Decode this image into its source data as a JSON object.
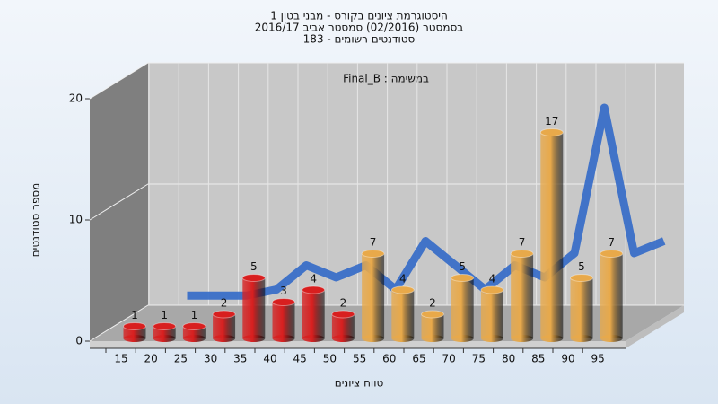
{
  "chart_data": {
    "type": "bar",
    "title": [
      "היסטוגרמת ציונים בקורס - מבני בטון 1",
      "בסמסטר (02/2016) סמסטר אביב 2016/17",
      "סטודנטים רשומים - 183"
    ],
    "subtitle": "Final_B : במשימה",
    "x_label": "טווח ציונים",
    "y_label": "מספר סטודנטים",
    "categories": [
      15,
      20,
      25,
      30,
      35,
      40,
      45,
      50,
      55,
      60,
      65,
      70,
      75,
      80,
      85,
      90,
      95
    ],
    "values": [
      1,
      1,
      1,
      2,
      5,
      3,
      4,
      2,
      7,
      4,
      2,
      5,
      4,
      7,
      17,
      5,
      7
    ],
    "colors": [
      "#d81f1f",
      "#d81f1f",
      "#d81f1f",
      "#d81f1f",
      "#d81f1f",
      "#d81f1f",
      "#d81f1f",
      "#d81f1f",
      "#e8a94a",
      "#e8a94a",
      "#e8a94a",
      "#e8a94a",
      "#e8a94a",
      "#e8a94a",
      "#e8a94a",
      "#e8a94a",
      "#e8a94a"
    ],
    "trend_values": [
      0.5,
      0.5,
      0.5,
      1,
      3,
      2,
      3,
      1,
      5,
      3,
      1,
      3,
      2,
      4,
      16,
      4,
      5
    ],
    "trend_color": "#3a6fc8",
    "ylim": [
      0,
      20
    ],
    "yticks": [
      0,
      10,
      20
    ],
    "grid": true
  }
}
